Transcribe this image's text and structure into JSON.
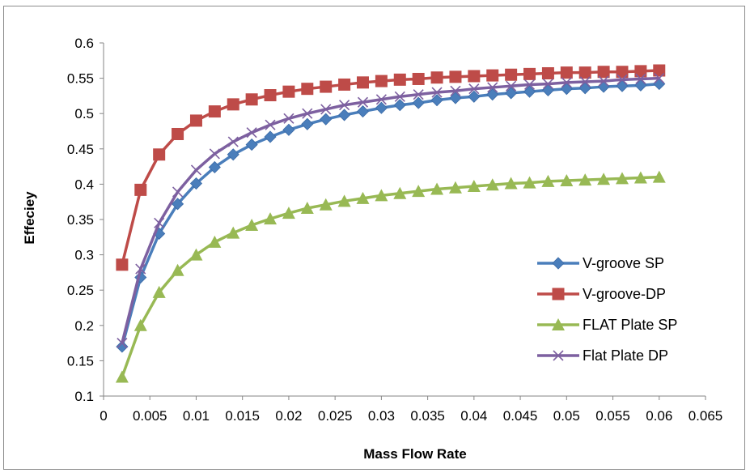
{
  "chart_data": {
    "type": "line",
    "title": "",
    "xlabel": "Mass Flow Rate",
    "ylabel": "Effeciey",
    "xlim": [
      0,
      0.065
    ],
    "ylim": [
      0.1,
      0.6
    ],
    "x_ticks": [
      "0",
      "0.005",
      "0.01",
      "0.015",
      "0.02",
      "0.025",
      "0.03",
      "0.035",
      "0.04",
      "0.045",
      "0.05",
      "0.055",
      "0.06",
      "0.065"
    ],
    "y_ticks": [
      "0.1",
      "0.15",
      "0.2",
      "0.25",
      "0.3",
      "0.35",
      "0.4",
      "0.45",
      "0.5",
      "0.55",
      "0.6"
    ],
    "grid": false,
    "legend_position": "right",
    "x": [
      0.002,
      0.004,
      0.006,
      0.008,
      0.01,
      0.012,
      0.014,
      0.016,
      0.018,
      0.02,
      0.022,
      0.024,
      0.026,
      0.028,
      0.03,
      0.032,
      0.034,
      0.036,
      0.038,
      0.04,
      0.042,
      0.044,
      0.046,
      0.048,
      0.05,
      0.052,
      0.054,
      0.056,
      0.058,
      0.06
    ],
    "series": [
      {
        "name": "V-groove SP",
        "color": "#4a7ebb",
        "marker": "diamond",
        "values": [
          0.17,
          0.268,
          0.33,
          0.372,
          0.401,
          0.424,
          0.442,
          0.456,
          0.467,
          0.477,
          0.485,
          0.492,
          0.498,
          0.503,
          0.508,
          0.512,
          0.515,
          0.519,
          0.522,
          0.524,
          0.527,
          0.529,
          0.531,
          0.533,
          0.535,
          0.536,
          0.538,
          0.539,
          0.54,
          0.542
        ]
      },
      {
        "name": "V-groove-DP",
        "color": "#be4b48",
        "marker": "square",
        "values": [
          0.286,
          0.392,
          0.442,
          0.471,
          0.49,
          0.503,
          0.513,
          0.52,
          0.526,
          0.531,
          0.535,
          0.538,
          0.541,
          0.544,
          0.546,
          0.548,
          0.549,
          0.551,
          0.552,
          0.553,
          0.554,
          0.555,
          0.556,
          0.557,
          0.558,
          0.558,
          0.559,
          0.559,
          0.56,
          0.561
        ]
      },
      {
        "name": "FLAT Plate SP",
        "color": "#98b954",
        "marker": "triangle",
        "values": [
          0.127,
          0.2,
          0.247,
          0.278,
          0.3,
          0.318,
          0.331,
          0.342,
          0.351,
          0.359,
          0.366,
          0.371,
          0.376,
          0.38,
          0.384,
          0.387,
          0.39,
          0.393,
          0.395,
          0.397,
          0.399,
          0.401,
          0.402,
          0.404,
          0.405,
          0.406,
          0.407,
          0.408,
          0.409,
          0.41
        ]
      },
      {
        "name": "Flat Plate DP",
        "color": "#7d60a0",
        "marker": "x",
        "values": [
          0.175,
          0.28,
          0.345,
          0.389,
          0.42,
          0.443,
          0.46,
          0.473,
          0.484,
          0.493,
          0.5,
          0.506,
          0.512,
          0.516,
          0.52,
          0.524,
          0.527,
          0.53,
          0.532,
          0.535,
          0.537,
          0.539,
          0.541,
          0.542,
          0.544,
          0.545,
          0.546,
          0.548,
          0.549,
          0.55
        ]
      }
    ]
  }
}
